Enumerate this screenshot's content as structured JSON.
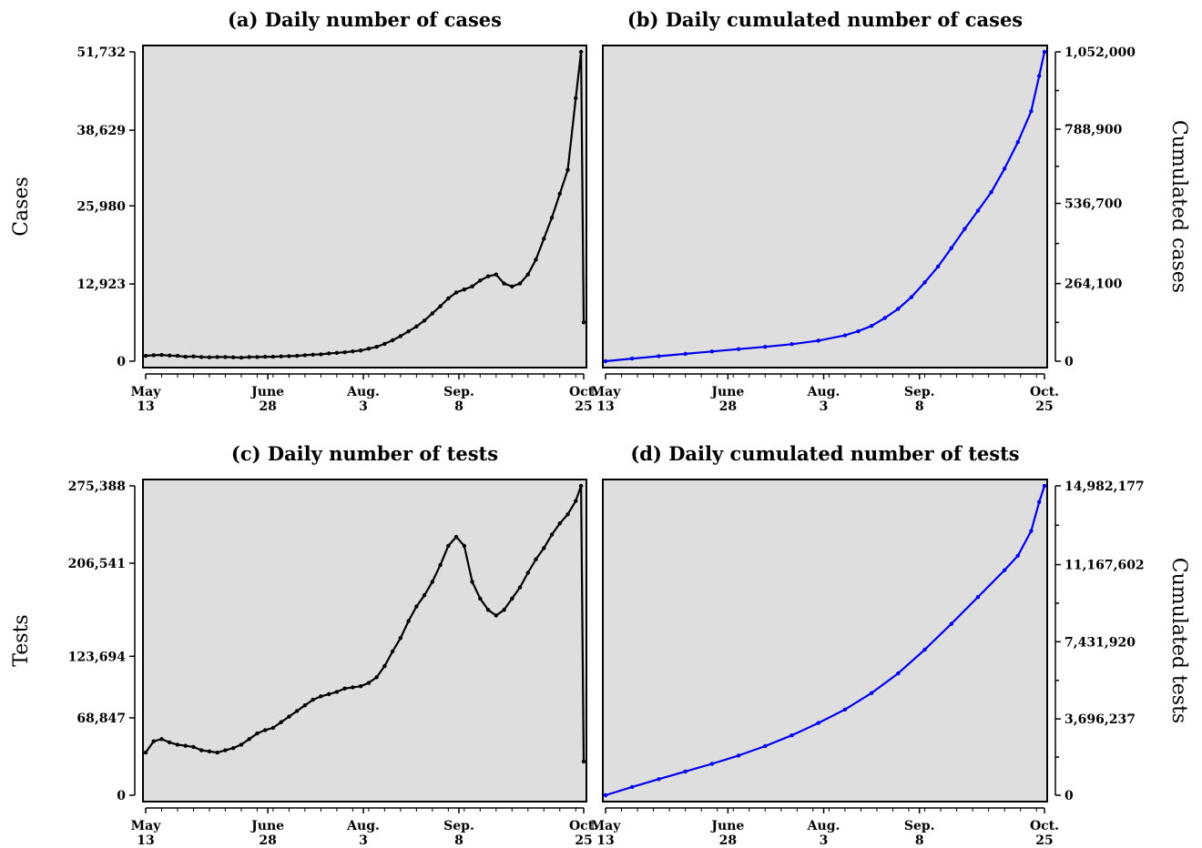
{
  "figure": {
    "row_labels": [
      "Cases",
      "Tests"
    ],
    "right_labels": [
      "Cumulated cases",
      "Cumulated tests"
    ]
  },
  "x_axis": {
    "ticks": [
      {
        "day": 0,
        "line1": "May",
        "line2": "13"
      },
      {
        "day": 46,
        "line1": "June",
        "line2": "28"
      },
      {
        "day": 82,
        "line1": "Aug.",
        "line2": "3"
      },
      {
        "day": 118,
        "line1": "Sep.",
        "line2": "8"
      },
      {
        "day": 165,
        "line1": "Oct.",
        "line2": "25"
      }
    ]
  },
  "chart_data": [
    {
      "id": "a",
      "type": "line",
      "title": "(a) Daily number of cases",
      "xlabel": "",
      "ylabel": "Cases",
      "x_range": [
        0,
        165
      ],
      "ylim": [
        0,
        51732
      ],
      "yticks": [
        0,
        12923,
        25980,
        38629,
        51732
      ],
      "ytick_labels": [
        "0",
        "12,923",
        "25,980",
        "38,629",
        "51,732"
      ],
      "color": "#000000",
      "grid": false,
      "y_axis_side": "left",
      "series": [
        {
          "points": [
            [
              0,
              900
            ],
            [
              3,
              1000
            ],
            [
              6,
              1050
            ],
            [
              9,
              950
            ],
            [
              12,
              900
            ],
            [
              15,
              750
            ],
            [
              18,
              800
            ],
            [
              21,
              700
            ],
            [
              24,
              650
            ],
            [
              27,
              700
            ],
            [
              30,
              700
            ],
            [
              33,
              650
            ],
            [
              36,
              600
            ],
            [
              39,
              700
            ],
            [
              42,
              700
            ],
            [
              45,
              750
            ],
            [
              48,
              750
            ],
            [
              51,
              800
            ],
            [
              54,
              850
            ],
            [
              57,
              900
            ],
            [
              60,
              1000
            ],
            [
              63,
              1100
            ],
            [
              66,
              1150
            ],
            [
              69,
              1300
            ],
            [
              72,
              1400
            ],
            [
              75,
              1500
            ],
            [
              78,
              1650
            ],
            [
              81,
              1800
            ],
            [
              84,
              2100
            ],
            [
              87,
              2400
            ],
            [
              90,
              2900
            ],
            [
              93,
              3500
            ],
            [
              96,
              4200
            ],
            [
              99,
              5000
            ],
            [
              102,
              5800
            ],
            [
              105,
              6800
            ],
            [
              108,
              8000
            ],
            [
              111,
              9200
            ],
            [
              114,
              10500
            ],
            [
              117,
              11500
            ],
            [
              120,
              12000
            ],
            [
              123,
              12500
            ],
            [
              126,
              13500
            ],
            [
              129,
              14200
            ],
            [
              132,
              14500
            ],
            [
              135,
              13000
            ],
            [
              138,
              12500
            ],
            [
              141,
              13000
            ],
            [
              144,
              14500
            ],
            [
              147,
              17000
            ],
            [
              150,
              20500
            ],
            [
              153,
              24000
            ],
            [
              156,
              28000
            ],
            [
              159,
              32000
            ],
            [
              162,
              44000
            ],
            [
              164,
              51732
            ],
            [
              165,
              6500
            ]
          ]
        }
      ]
    },
    {
      "id": "b",
      "type": "line",
      "title": "(b) Daily cumulated number of cases",
      "xlabel": "",
      "ylabel": "Cumulated cases",
      "x_range": [
        0,
        165
      ],
      "ylim": [
        0,
        1052000
      ],
      "yticks": [
        0,
        264100,
        536700,
        788900,
        1052000
      ],
      "ytick_labels": [
        "0",
        "264,100",
        "536,700",
        "788,900",
        "1,052,000"
      ],
      "color": "#0000ee",
      "grid": false,
      "y_axis_side": "right",
      "series": [
        {
          "points": [
            [
              0,
              0
            ],
            [
              10,
              9000
            ],
            [
              20,
              17000
            ],
            [
              30,
              25000
            ],
            [
              40,
              33000
            ],
            [
              50,
              41000
            ],
            [
              60,
              49000
            ],
            [
              70,
              58000
            ],
            [
              80,
              70000
            ],
            [
              90,
              88000
            ],
            [
              95,
              102000
            ],
            [
              100,
              120000
            ],
            [
              105,
              147000
            ],
            [
              110,
              178000
            ],
            [
              115,
              218000
            ],
            [
              120,
              268000
            ],
            [
              125,
              322000
            ],
            [
              130,
              385000
            ],
            [
              135,
              450000
            ],
            [
              140,
              512000
            ],
            [
              145,
              575000
            ],
            [
              150,
              655000
            ],
            [
              155,
              745000
            ],
            [
              160,
              850000
            ],
            [
              163,
              970000
            ],
            [
              165,
              1052000
            ]
          ]
        }
      ]
    },
    {
      "id": "c",
      "type": "line",
      "title": "(c) Daily number of tests",
      "xlabel": "",
      "ylabel": "Tests",
      "x_range": [
        0,
        165
      ],
      "ylim": [
        0,
        275388
      ],
      "yticks": [
        0,
        68847,
        123694,
        206541,
        275388
      ],
      "ytick_labels": [
        "0",
        "68,847",
        "123,694",
        "206,541",
        "275,388"
      ],
      "color": "#000000",
      "grid": false,
      "y_axis_side": "left",
      "series": [
        {
          "points": [
            [
              0,
              38000
            ],
            [
              3,
              48000
            ],
            [
              6,
              50000
            ],
            [
              9,
              47000
            ],
            [
              12,
              45000
            ],
            [
              15,
              44000
            ],
            [
              18,
              43000
            ],
            [
              21,
              40000
            ],
            [
              24,
              39000
            ],
            [
              27,
              38000
            ],
            [
              30,
              40000
            ],
            [
              33,
              42000
            ],
            [
              36,
              45000
            ],
            [
              39,
              50000
            ],
            [
              42,
              55000
            ],
            [
              45,
              58000
            ],
            [
              48,
              60000
            ],
            [
              51,
              65000
            ],
            [
              54,
              70000
            ],
            [
              57,
              75000
            ],
            [
              60,
              80000
            ],
            [
              63,
              85000
            ],
            [
              66,
              88000
            ],
            [
              69,
              90000
            ],
            [
              72,
              92000
            ],
            [
              75,
              95000
            ],
            [
              78,
              96000
            ],
            [
              81,
              97000
            ],
            [
              84,
              100000
            ],
            [
              87,
              105000
            ],
            [
              90,
              115000
            ],
            [
              93,
              128000
            ],
            [
              96,
              140000
            ],
            [
              99,
              155000
            ],
            [
              102,
              168000
            ],
            [
              105,
              178000
            ],
            [
              108,
              190000
            ],
            [
              111,
              205000
            ],
            [
              114,
              222000
            ],
            [
              117,
              230000
            ],
            [
              120,
              222000
            ],
            [
              123,
              190000
            ],
            [
              126,
              175000
            ],
            [
              129,
              165000
            ],
            [
              132,
              160000
            ],
            [
              135,
              165000
            ],
            [
              138,
              175000
            ],
            [
              141,
              185000
            ],
            [
              144,
              198000
            ],
            [
              147,
              210000
            ],
            [
              150,
              220000
            ],
            [
              153,
              232000
            ],
            [
              156,
              242000
            ],
            [
              159,
              250000
            ],
            [
              162,
              262000
            ],
            [
              164,
              275388
            ],
            [
              165,
              30000
            ]
          ]
        }
      ]
    },
    {
      "id": "d",
      "type": "line",
      "title": "(d) Daily cumulated number of tests",
      "xlabel": "",
      "ylabel": "Cumulated tests",
      "x_range": [
        0,
        165
      ],
      "ylim": [
        0,
        14982177
      ],
      "yticks": [
        0,
        3696237,
        7431920,
        11167602,
        14982177
      ],
      "ytick_labels": [
        "0",
        "3,696,237",
        "7,431,920",
        "11,167,602",
        "14,982,177"
      ],
      "color": "#0000ee",
      "grid": false,
      "y_axis_side": "right",
      "series": [
        {
          "points": [
            [
              0,
              0
            ],
            [
              10,
              400000
            ],
            [
              20,
              780000
            ],
            [
              30,
              1150000
            ],
            [
              40,
              1520000
            ],
            [
              50,
              1920000
            ],
            [
              60,
              2380000
            ],
            [
              70,
              2900000
            ],
            [
              80,
              3500000
            ],
            [
              90,
              4150000
            ],
            [
              100,
              4950000
            ],
            [
              110,
              5900000
            ],
            [
              120,
              7050000
            ],
            [
              130,
              8300000
            ],
            [
              140,
              9600000
            ],
            [
              150,
              10900000
            ],
            [
              155,
              11600000
            ],
            [
              160,
              12800000
            ],
            [
              163,
              14200000
            ],
            [
              165,
              14982177
            ]
          ]
        }
      ]
    }
  ]
}
